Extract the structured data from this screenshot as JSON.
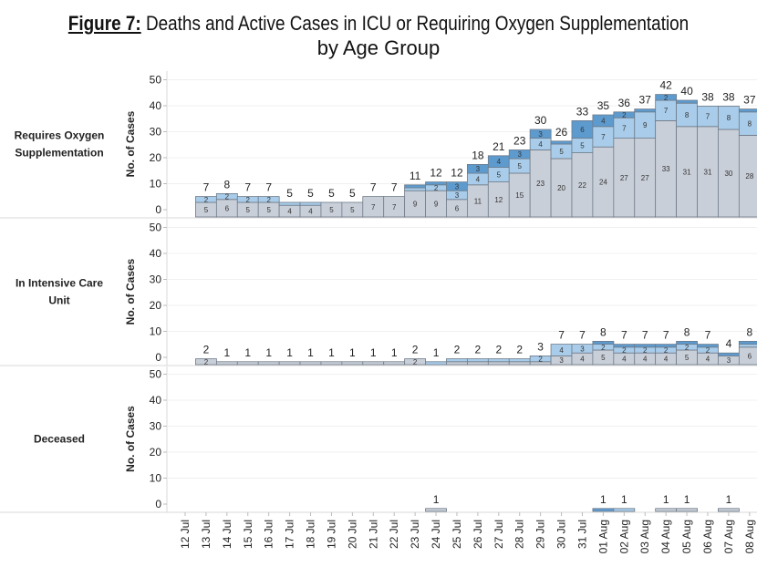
{
  "figure": {
    "label": "Figure 7:",
    "title_line1": "Deaths and Active Cases in ICU or Requiring Oxygen Supplementation",
    "title_line2": "by Age Group"
  },
  "colors": {
    "grey": "#c9cfd8",
    "light_blue": "#a8cce9",
    "dark_blue": "#5d9bcf",
    "outline": "#6e7a88"
  },
  "chart_data": [
    {
      "type": "bar",
      "stacked": true,
      "row_label": "Requires Oxygen Supplementation",
      "ylabel": "No. of Cases",
      "ylim": [
        0,
        50
      ],
      "yticks": [
        0,
        10,
        20,
        30,
        40,
        50
      ],
      "grid": true,
      "categories": [
        "12 Jul",
        "13 Jul",
        "14 Jul",
        "15 Jul",
        "16 Jul",
        "17 Jul",
        "18 Jul",
        "19 Jul",
        "20 Jul",
        "21 Jul",
        "22 Jul",
        "23 Jul",
        "24 Jul",
        "25 Jul",
        "26 Jul",
        "27 Jul",
        "28 Jul",
        "29 Jul",
        "30 Jul",
        "31 Jul",
        "01 Aug",
        "02 Aug",
        "03 Aug",
        "04 Aug",
        "05 Aug",
        "06 Aug",
        "07 Aug",
        "08 Aug"
      ],
      "series": [
        {
          "color": "#c9cfd8",
          "values": [
            0,
            5,
            6,
            5,
            5,
            4,
            4,
            5,
            5,
            7,
            7,
            9,
            9,
            6,
            11,
            12,
            15,
            23,
            20,
            22,
            24,
            27,
            27,
            33,
            31,
            31,
            30,
            28
          ]
        },
        {
          "color": "#a8cce9",
          "values": [
            0,
            2,
            2,
            2,
            2,
            1,
            1,
            0,
            0,
            0,
            0,
            1,
            2,
            3,
            4,
            5,
            5,
            4,
            5,
            5,
            7,
            7,
            9,
            7,
            8,
            7,
            8,
            8
          ]
        },
        {
          "color": "#5d9bcf",
          "values": [
            0,
            0,
            0,
            0,
            0,
            0,
            0,
            0,
            0,
            0,
            0,
            1,
            1,
            3,
            3,
            4,
            3,
            3,
            1,
            6,
            4,
            2,
            1,
            2,
            1,
            0,
            0,
            1
          ]
        }
      ]
    },
    {
      "type": "bar",
      "stacked": true,
      "row_label": "In Intensive Care Unit",
      "ylabel": "No. of Cases",
      "ylim": [
        0,
        50
      ],
      "yticks": [
        0,
        10,
        20,
        30,
        40,
        50
      ],
      "grid": true,
      "categories": [
        "12 Jul",
        "13 Jul",
        "14 Jul",
        "15 Jul",
        "16 Jul",
        "17 Jul",
        "18 Jul",
        "19 Jul",
        "20 Jul",
        "21 Jul",
        "22 Jul",
        "23 Jul",
        "24 Jul",
        "25 Jul",
        "26 Jul",
        "27 Jul",
        "28 Jul",
        "29 Jul",
        "30 Jul",
        "31 Jul",
        "01 Aug",
        "02 Aug",
        "03 Aug",
        "04 Aug",
        "05 Aug",
        "06 Aug",
        "07 Aug",
        "08 Aug"
      ],
      "series": [
        {
          "color": "#c9cfd8",
          "values": [
            0,
            2,
            1,
            1,
            1,
            1,
            1,
            1,
            1,
            1,
            1,
            2,
            0,
            1,
            1,
            1,
            1,
            1,
            3,
            4,
            5,
            4,
            4,
            4,
            5,
            4,
            3,
            6
          ]
        },
        {
          "color": "#a8cce9",
          "values": [
            0,
            0,
            0,
            0,
            0,
            0,
            0,
            0,
            0,
            0,
            0,
            0,
            1,
            1,
            1,
            1,
            1,
            2,
            4,
            3,
            2,
            2,
            2,
            2,
            2,
            2,
            0,
            1
          ]
        },
        {
          "color": "#5d9bcf",
          "values": [
            0,
            0,
            0,
            0,
            0,
            0,
            0,
            0,
            0,
            0,
            0,
            0,
            0,
            0,
            0,
            0,
            0,
            0,
            0,
            0,
            1,
            1,
            1,
            1,
            1,
            1,
            1,
            1
          ]
        }
      ]
    },
    {
      "type": "bar",
      "stacked": true,
      "row_label": "Deceased",
      "ylabel": "No. of Cases",
      "ylim": [
        0,
        50
      ],
      "yticks": [
        0,
        10,
        20,
        30,
        40,
        50
      ],
      "grid": true,
      "categories": [
        "12 Jul",
        "13 Jul",
        "14 Jul",
        "15 Jul",
        "16 Jul",
        "17 Jul",
        "18 Jul",
        "19 Jul",
        "20 Jul",
        "21 Jul",
        "22 Jul",
        "23 Jul",
        "24 Jul",
        "25 Jul",
        "26 Jul",
        "27 Jul",
        "28 Jul",
        "29 Jul",
        "30 Jul",
        "31 Jul",
        "01 Aug",
        "02 Aug",
        "03 Aug",
        "04 Aug",
        "05 Aug",
        "06 Aug",
        "07 Aug",
        "08 Aug"
      ],
      "series": [
        {
          "color": "#c9cfd8",
          "values": [
            0,
            0,
            0,
            0,
            0,
            0,
            0,
            0,
            0,
            0,
            0,
            0,
            1,
            0,
            0,
            0,
            0,
            0,
            0,
            0,
            0,
            0,
            0,
            1,
            1,
            0,
            1,
            0
          ]
        },
        {
          "color": "#a8cce9",
          "values": [
            0,
            0,
            0,
            0,
            0,
            0,
            0,
            0,
            0,
            0,
            0,
            0,
            0,
            0,
            0,
            0,
            0,
            0,
            0,
            0,
            0,
            1,
            0,
            0,
            0,
            0,
            0,
            0
          ]
        },
        {
          "color": "#5d9bcf",
          "values": [
            0,
            0,
            0,
            0,
            0,
            0,
            0,
            0,
            0,
            0,
            0,
            0,
            0,
            0,
            0,
            0,
            0,
            0,
            0,
            0,
            1,
            0,
            0,
            0,
            0,
            0,
            0,
            0
          ]
        }
      ]
    }
  ]
}
